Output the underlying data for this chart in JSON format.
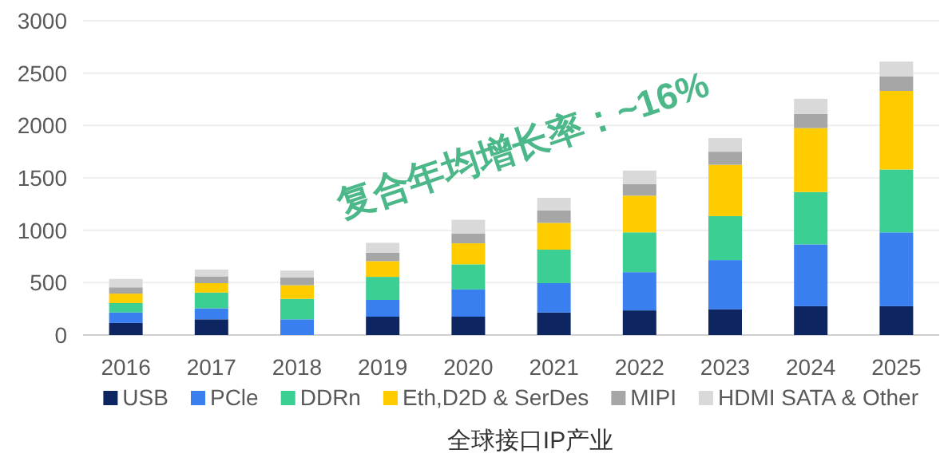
{
  "chart_data": {
    "type": "bar",
    "stacked": true,
    "categories": [
      "2016",
      "2017",
      "2018",
      "2019",
      "2020",
      "2021",
      "2022",
      "2023",
      "2024",
      "2025"
    ],
    "series": [
      {
        "name": "USB",
        "color": "#0d2561",
        "values": [
          115,
          150,
          0,
          175,
          175,
          215,
          235,
          245,
          275,
          275
        ]
      },
      {
        "name": "PCle",
        "color": "#3a7ff0",
        "values": [
          100,
          105,
          150,
          160,
          260,
          280,
          365,
          470,
          590,
          705
        ]
      },
      {
        "name": "DDRn",
        "color": "#3ccf94",
        "values": [
          90,
          150,
          195,
          220,
          240,
          320,
          380,
          420,
          500,
          600
        ]
      },
      {
        "name": "Eth,D2D &  SerDes",
        "color": "#ffcc00",
        "values": [
          90,
          90,
          130,
          150,
          200,
          255,
          350,
          490,
          610,
          750
        ]
      },
      {
        "name": "MIPI",
        "color": "#a6a6a6",
        "values": [
          60,
          65,
          75,
          80,
          95,
          120,
          110,
          125,
          135,
          140
        ]
      },
      {
        "name": "HDMI SATA  & Other",
        "color": "#d9d9d9",
        "values": [
          80,
          65,
          65,
          95,
          130,
          120,
          130,
          130,
          145,
          140
        ]
      }
    ],
    "ylim": [
      0,
      3000
    ],
    "yticks": [
      0,
      500,
      1000,
      1500,
      2000,
      2500,
      3000
    ],
    "grid": "y",
    "legend": "bottom",
    "xlabel": "全球接口IP产业",
    "annotations": [
      "复合年均增长率：~16%"
    ]
  }
}
